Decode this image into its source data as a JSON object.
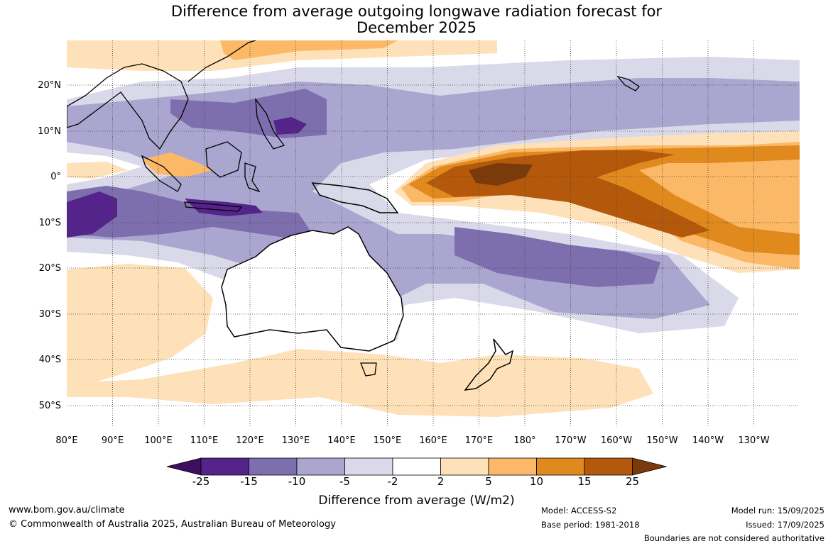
{
  "title_line1": "Difference from average outgoing longwave radiation forecast for",
  "title_line2": "December 2025",
  "lat_labels": [
    "20°N",
    "10°N",
    "0°",
    "10°S",
    "20°S",
    "30°S",
    "40°S",
    "50°S"
  ],
  "lon_labels": [
    "80°E",
    "90°E",
    "100°E",
    "110°E",
    "120°E",
    "130°E",
    "140°E",
    "150°E",
    "160°E",
    "170°E",
    "180°",
    "170°W",
    "160°W",
    "150°W",
    "140°W",
    "130°W"
  ],
  "colorbar": {
    "ticks": [
      "-25",
      "-15",
      "-10",
      "-5",
      "-2",
      "2",
      "5",
      "10",
      "15",
      "25"
    ],
    "colors": [
      "#3f0f5f",
      "#55248a",
      "#7d6fae",
      "#aba6cf",
      "#d9d9ea",
      "#ffffff",
      "#fee1b8",
      "#fbb866",
      "#e08a1e",
      "#b4590b",
      "#7a3a09"
    ],
    "title": "Difference from average (W/m2)"
  },
  "footer": {
    "url": "www.bom.gov.au/climate",
    "copyright": "© Commonwealth of Australia 2025, Australian Bureau of Meteorology",
    "model": "Model: ACCESS-S2",
    "base_period": "Base period: 1981-2018",
    "model_run": "Model run: 15/09/2025",
    "issued": "Issued: 17/09/2025",
    "disclaimer": "Boundaries are not considered authoritative"
  }
}
